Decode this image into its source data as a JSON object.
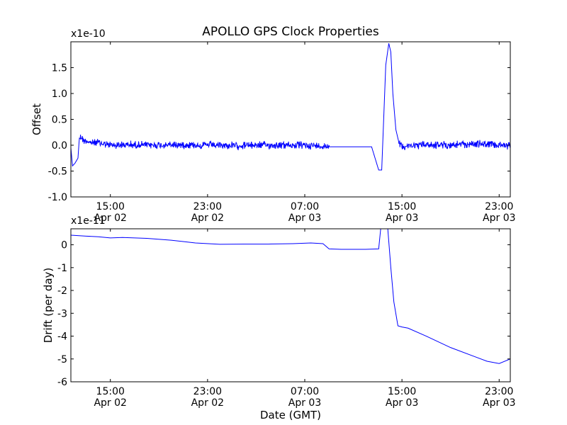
{
  "figure": {
    "title": "APOLLO GPS Clock Properties",
    "xlabel": "Date (GMT)",
    "x_ticks": [
      {
        "time": "2014-04-02T15:00",
        "l1": "15:00",
        "l2": "Apr 02"
      },
      {
        "time": "2014-04-02T23:00",
        "l1": "23:00",
        "l2": "Apr 02"
      },
      {
        "time": "2014-04-03T07:00",
        "l1": "07:00",
        "l2": "Apr 03"
      },
      {
        "time": "2014-04-03T15:00",
        "l1": "15:00",
        "l2": "Apr 03"
      },
      {
        "time": "2014-04-03T23:00",
        "l1": "23:00",
        "l2": "Apr 03"
      }
    ],
    "line_color": "#0000ff"
  },
  "chart_data": [
    {
      "type": "line",
      "title": "APOLLO GPS Clock Properties",
      "ylabel": "Offset",
      "offset_text": "x1e-10",
      "xlim": [
        "2014-04-02T11:45",
        "2014-04-03T23:55"
      ],
      "ylim": [
        -1.0,
        2.0
      ],
      "yticks": [
        {
          "v": -1.0,
          "label": "-1.0"
        },
        {
          "v": -0.5,
          "label": "-0.5"
        },
        {
          "v": 0.0,
          "label": "0.0"
        },
        {
          "v": 0.5,
          "label": "0.5"
        },
        {
          "v": 1.0,
          "label": "1.0"
        },
        {
          "v": 1.5,
          "label": "1.5"
        }
      ],
      "series": [
        {
          "color": "#0000ff",
          "noisy": true,
          "x": [
            "2014-04-02T11:45",
            "2014-04-02T11:53",
            "2014-04-02T12:05",
            "2014-04-02T12:20",
            "2014-04-02T12:27",
            "2014-04-02T12:40",
            "2014-04-02T12:45",
            "2014-04-02T13:05",
            "2014-04-02T13:20",
            "2014-04-02T14:00",
            "2014-04-02T15:00",
            "2014-04-02T17:00",
            "2014-04-02T19:00",
            "2014-04-02T21:00",
            "2014-04-02T23:00",
            "2014-04-03T01:00",
            "2014-04-03T03:00",
            "2014-04-03T05:00",
            "2014-04-03T07:00",
            "2014-04-03T08:30",
            "2014-04-03T09:00",
            "2014-04-03T09:01",
            "2014-04-03T12:20",
            "2014-04-03T12:30",
            "2014-04-03T13:05",
            "2014-04-03T13:06",
            "2014-04-03T13:20",
            "2014-04-03T13:40",
            "2014-04-03T13:55",
            "2014-04-03T14:05",
            "2014-04-03T14:15",
            "2014-04-03T14:30",
            "2014-04-03T14:45",
            "2014-04-03T15:00",
            "2014-04-03T17:00",
            "2014-04-03T19:00",
            "2014-04-03T21:00",
            "2014-04-03T23:00",
            "2014-04-03T23:55"
          ],
          "y": [
            -0.05,
            -0.4,
            -0.35,
            -0.25,
            0.15,
            0.15,
            0.1,
            0.08,
            0.05,
            0.05,
            0.0,
            0.01,
            0.0,
            0.01,
            0.0,
            -0.01,
            0.0,
            0.0,
            0.0,
            -0.02,
            0.0,
            -0.03,
            -0.03,
            -0.03,
            -0.48,
            -0.48,
            -0.48,
            1.55,
            1.97,
            1.8,
            1.0,
            0.3,
            0.05,
            -0.02,
            0.01,
            0.0,
            0.03,
            0.0,
            -0.01
          ]
        }
      ]
    },
    {
      "type": "line",
      "ylabel": "Drift (per day)",
      "offset_text": "x1e-11",
      "xlim": [
        "2014-04-02T11:45",
        "2014-04-03T23:55"
      ],
      "ylim": [
        -6.0,
        0.7
      ],
      "yticks": [
        {
          "v": -6,
          "label": "-6"
        },
        {
          "v": -5,
          "label": "-5"
        },
        {
          "v": -4,
          "label": "-4"
        },
        {
          "v": -3,
          "label": "-3"
        },
        {
          "v": -2,
          "label": "-2"
        },
        {
          "v": -1,
          "label": "-1"
        },
        {
          "v": 0,
          "label": "0"
        }
      ],
      "series": [
        {
          "color": "#0000ff",
          "noisy": false,
          "x": [
            "2014-04-02T11:45",
            "2014-04-02T13:00",
            "2014-04-02T14:00",
            "2014-04-02T15:00",
            "2014-04-02T16:00",
            "2014-04-02T18:00",
            "2014-04-02T20:00",
            "2014-04-02T22:00",
            "2014-04-03T00:00",
            "2014-04-03T02:00",
            "2014-04-03T04:00",
            "2014-04-03T06:00",
            "2014-04-03T07:30",
            "2014-04-03T08:30",
            "2014-04-03T09:00",
            "2014-04-03T10:00",
            "2014-04-03T12:00",
            "2014-04-03T13:05",
            "2014-04-03T13:15",
            "2014-04-03T13:40",
            "2014-04-03T13:50",
            "2014-04-03T14:05",
            "2014-04-03T14:20",
            "2014-04-03T14:40",
            "2014-04-03T15:00",
            "2014-04-03T15:30",
            "2014-04-03T17:00",
            "2014-04-03T19:00",
            "2014-04-03T21:00",
            "2014-04-03T22:00",
            "2014-04-03T23:00",
            "2014-04-03T23:55"
          ],
          "y": [
            0.42,
            0.38,
            0.35,
            0.3,
            0.32,
            0.28,
            0.2,
            0.08,
            0.02,
            0.03,
            0.03,
            0.05,
            0.08,
            0.05,
            -0.18,
            -0.2,
            -0.2,
            -0.18,
            0.7,
            0.7,
            0.7,
            -1.0,
            -2.5,
            -3.55,
            -3.6,
            -3.65,
            -4.0,
            -4.5,
            -4.9,
            -5.1,
            -5.2,
            -5.0
          ]
        }
      ]
    }
  ]
}
